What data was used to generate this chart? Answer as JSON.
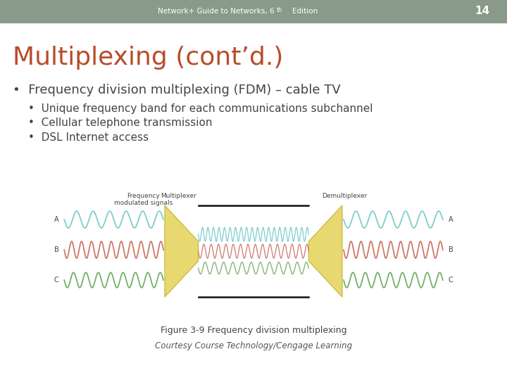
{
  "slide_bg": "#ffffff",
  "header_bg": "#8a9a8a",
  "header_text": "Network+ Guide to Networks, 6th Edition",
  "header_number": "14",
  "title": "Multiplexing (cont’d.)",
  "title_color": "#b84c2a",
  "bullet1": "Frequency division multiplexing (FDM) – cable TV",
  "sub_bullets": [
    "Unique frequency band for each communications subchannel",
    "Cellular telephone transmission",
    "DSL Internet access"
  ],
  "fig_caption": "Figure 3-9 Frequency division multiplexing",
  "fig_courtesy": "Courtesy Course Technology/Cengage Learning",
  "wave_color_A": "#7ecece",
  "wave_color_B": "#d07868",
  "wave_color_C": "#78ae68",
  "mux_color": "#e8d870",
  "mux_edge": "#c8b840",
  "line_color": "#111111",
  "label_color": "#444444",
  "header_text_color": "#ffffff",
  "header_num_color": "#ffffff"
}
